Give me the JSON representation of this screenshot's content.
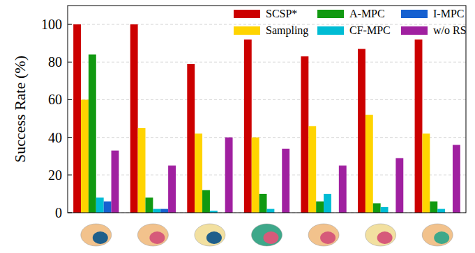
{
  "chart_data": {
    "type": "bar",
    "y_label": "Success Rate (%)",
    "categories": [
      null,
      null,
      null,
      null,
      null,
      null,
      null
    ],
    "series": [
      {
        "name": "SCSP*",
        "color": "#cc0000",
        "values": [
          100,
          100,
          79,
          92,
          83,
          87,
          92
        ]
      },
      {
        "name": "Sampling",
        "color": "#ffd400",
        "values": [
          60,
          45,
          42,
          40,
          46,
          52,
          42
        ]
      },
      {
        "name": "A-MPC",
        "color": "#119911",
        "values": [
          84,
          8,
          12,
          10,
          6,
          5,
          6
        ]
      },
      {
        "name": "CF-MPC",
        "color": "#00bcd4",
        "values": [
          8,
          2,
          1,
          2,
          10,
          3,
          2
        ]
      },
      {
        "name": "I-MPC",
        "color": "#1560d0",
        "values": [
          6,
          2,
          0,
          0,
          0,
          0,
          0
        ]
      },
      {
        "name": "w/o RS",
        "color": "#a020a0",
        "values": [
          33,
          25,
          40,
          34,
          25,
          29,
          36
        ]
      }
    ],
    "ylim": [
      0,
      110
    ],
    "yticks": [
      0,
      20,
      40,
      60,
      80,
      100
    ],
    "grid": true,
    "legend": "upper right",
    "tick_labels": "y"
  }
}
